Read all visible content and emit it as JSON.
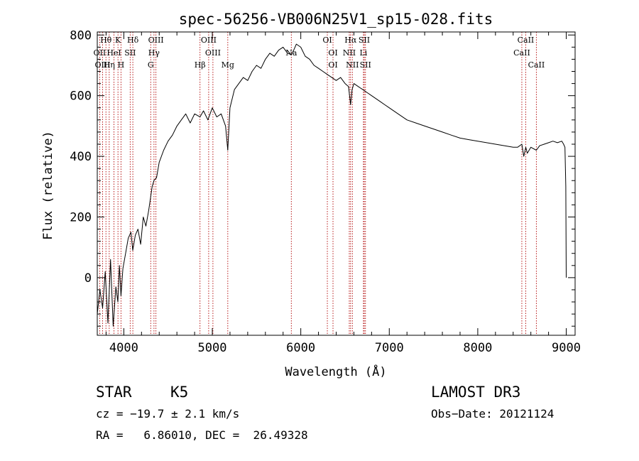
{
  "chart_data": {
    "type": "line",
    "title": "spec-56256-VB006N25V1_sp15-028.fits",
    "xlabel": "Wavelength (Å)",
    "ylabel": "Flux (relative)",
    "xlim": [
      3700,
      9100
    ],
    "ylim": [
      -190,
      810
    ],
    "xticks": [
      4000,
      5000,
      6000,
      7000,
      8000,
      9000
    ],
    "yticks": [
      0,
      200,
      400,
      600,
      800
    ],
    "xtick_labels": [
      "4000",
      "5000",
      "6000",
      "7000",
      "8000",
      "9000"
    ],
    "ytick_labels": [
      "0",
      "200",
      "400",
      "600",
      "800"
    ],
    "series": [
      {
        "name": "spectrum",
        "x": [
          3700,
          3730,
          3760,
          3790,
          3820,
          3850,
          3880,
          3910,
          3933,
          3950,
          3968,
          3990,
          4020,
          4050,
          4080,
          4101,
          4130,
          4160,
          4190,
          4220,
          4250,
          4280,
          4300,
          4320,
          4340,
          4370,
          4400,
          4450,
          4500,
          4550,
          4600,
          4650,
          4700,
          4750,
          4800,
          4861,
          4900,
          4950,
          5000,
          5050,
          5100,
          5150,
          5175,
          5200,
          5250,
          5300,
          5350,
          5400,
          5450,
          5500,
          5550,
          5600,
          5650,
          5700,
          5750,
          5800,
          5850,
          5893,
          5920,
          5950,
          6000,
          6050,
          6100,
          6150,
          6200,
          6250,
          6300,
          6350,
          6400,
          6450,
          6500,
          6540,
          6563,
          6580,
          6600,
          6650,
          6700,
          6750,
          6800,
          6850,
          6900,
          6950,
          7000,
          7100,
          7200,
          7300,
          7400,
          7500,
          7600,
          7700,
          7800,
          7900,
          8000,
          8100,
          8200,
          8300,
          8400,
          8450,
          8498,
          8520,
          8542,
          8560,
          8600,
          8662,
          8700,
          8750,
          8800,
          8850,
          8900,
          8950,
          8970,
          8985,
          8995,
          9000
        ],
        "y": [
          -120,
          -40,
          -100,
          20,
          -150,
          60,
          -160,
          -30,
          -80,
          40,
          -60,
          30,
          80,
          130,
          150,
          90,
          140,
          160,
          110,
          200,
          170,
          220,
          260,
          300,
          320,
          330,
          380,
          420,
          450,
          470,
          500,
          520,
          540,
          510,
          540,
          530,
          550,
          520,
          560,
          530,
          540,
          500,
          420,
          560,
          620,
          640,
          660,
          650,
          680,
          700,
          690,
          720,
          740,
          730,
          750,
          760,
          740,
          735,
          750,
          770,
          760,
          730,
          720,
          700,
          690,
          680,
          670,
          660,
          650,
          660,
          640,
          630,
          570,
          620,
          640,
          630,
          620,
          610,
          600,
          590,
          580,
          570,
          560,
          540,
          520,
          510,
          500,
          490,
          480,
          470,
          460,
          455,
          450,
          445,
          440,
          435,
          430,
          430,
          440,
          400,
          430,
          410,
          430,
          420,
          435,
          440,
          445,
          450,
          445,
          450,
          440,
          430,
          300,
          0
        ]
      }
    ],
    "line_markers": [
      {
        "label": "Hθ",
        "x": 3798,
        "row": 0
      },
      {
        "label": "K",
        "x": 3934,
        "row": 0
      },
      {
        "label": "Hδ",
        "x": 4102,
        "row": 0
      },
      {
        "label": "OIII",
        "x": 4363,
        "row": 0
      },
      {
        "label": "OIII",
        "x": 4959,
        "row": 0
      },
      {
        "label": "OI",
        "x": 6300,
        "row": 0
      },
      {
        "label": "Hα",
        "x": 6563,
        "row": 0
      },
      {
        "label": "SII",
        "x": 6717,
        "row": 0
      },
      {
        "label": "CaII",
        "x": 8542,
        "row": 0
      },
      {
        "label": "OII",
        "x": 3727,
        "row": 1
      },
      {
        "label": "HeI",
        "x": 3889,
        "row": 1
      },
      {
        "label": "SII",
        "x": 4072,
        "row": 1
      },
      {
        "label": "Hγ",
        "x": 4341,
        "row": 1
      },
      {
        "label": "OIII",
        "x": 5007,
        "row": 1
      },
      {
        "label": "Na",
        "x": 5893,
        "row": 1
      },
      {
        "label": "OI",
        "x": 6364,
        "row": 1
      },
      {
        "label": "NII",
        "x": 6548,
        "row": 1
      },
      {
        "label": "Li",
        "x": 6708,
        "row": 1
      },
      {
        "label": "CaII",
        "x": 8498,
        "row": 1
      },
      {
        "label": "OIII",
        "x": 3760,
        "row": 2
      },
      {
        "label": "Hη",
        "x": 3835,
        "row": 2
      },
      {
        "label": "H",
        "x": 3968,
        "row": 2
      },
      {
        "label": "G",
        "x": 4304,
        "row": 2
      },
      {
        "label": "Hβ",
        "x": 4861,
        "row": 2
      },
      {
        "label": "Mg",
        "x": 5175,
        "row": 2
      },
      {
        "label": "OI",
        "x": 6364,
        "row": 2
      },
      {
        "label": "NII",
        "x": 6583,
        "row": 2
      },
      {
        "label": "SII",
        "x": 6731,
        "row": 2
      },
      {
        "label": "CaII",
        "x": 8662,
        "row": 2
      }
    ],
    "marker_lines_x": [
      3727,
      3760,
      3798,
      3835,
      3889,
      3934,
      3968,
      4072,
      4102,
      4304,
      4341,
      4363,
      4861,
      4959,
      5007,
      5175,
      5893,
      6300,
      6364,
      6548,
      6563,
      6583,
      6708,
      6717,
      6731,
      8498,
      8542,
      8662
    ]
  },
  "info": {
    "object_class": "STAR",
    "subclass": "K5",
    "survey": "LAMOST DR3",
    "cz": "cz = −19.7 ± 2.1 km/s",
    "obs_date": "Obs−Date: 20121124",
    "radec": "RA =   6.86010, DEC =  26.49328"
  },
  "colors": {
    "line": "#000000",
    "marker": "#b00000",
    "axis": "#000000"
  }
}
